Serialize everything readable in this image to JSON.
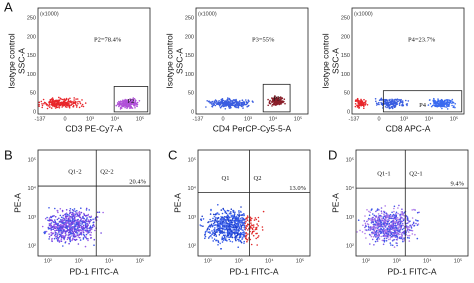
{
  "panel_labels": [
    "A",
    "B",
    "C",
    "D"
  ],
  "top_row": {
    "y_label": "Isotype control",
    "y_axis": "SSC-A",
    "y_scale": "(x1000)",
    "y_ticks": [
      "250",
      "200",
      "150",
      "100",
      "50",
      "0"
    ],
    "x_ticks": [
      "-137",
      "0",
      "10³",
      "10⁴",
      "10⁵"
    ],
    "plots": [
      {
        "x_label": "CD3 PE-Cy7-A",
        "gate_stat": "P2=78.4%",
        "gate_name": "P2"
      },
      {
        "x_label": "CD4 PerCP-Cy5-5-A",
        "gate_stat": "P3=55%",
        "gate_name": "P3"
      },
      {
        "x_label": "CD8 APC-A",
        "gate_stat": "P4=23.7%",
        "gate_name": "P4"
      }
    ]
  },
  "bottom_row": {
    "y_axis": "PE-A",
    "x_axis": "PD-1 FITC-A",
    "y_ticks": [
      "10⁵",
      "10⁴",
      "10³",
      "10²"
    ],
    "x_ticks": [
      "10²",
      "10³",
      "10⁴",
      "10⁵"
    ],
    "plots": [
      {
        "q1": "Q1-2",
        "q2": "Q2-2",
        "percent": "20.4%"
      },
      {
        "q1": "Q1",
        "q2": "Q2",
        "percent": "13.0%"
      },
      {
        "q1": "Q1-1",
        "q2": "Q2-1",
        "percent": "9.4%"
      }
    ]
  }
}
